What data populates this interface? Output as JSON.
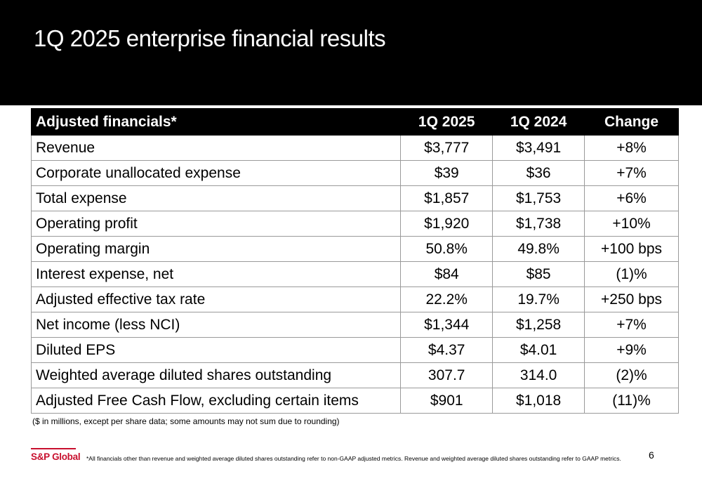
{
  "slide": {
    "title": "1Q 2025 enterprise financial results",
    "page_number": "6"
  },
  "table": {
    "headers": [
      "Adjusted financials*",
      "1Q 2025",
      "1Q 2024",
      "Change"
    ],
    "rows": [
      [
        "Revenue",
        "$3,777",
        "$3,491",
        "+8%"
      ],
      [
        "Corporate unallocated expense",
        "$39",
        "$36",
        "+7%"
      ],
      [
        "Total expense",
        "$1,857",
        "$1,753",
        "+6%"
      ],
      [
        "Operating profit",
        "$1,920",
        "$1,738",
        "+10%"
      ],
      [
        "Operating margin",
        "50.8%",
        "49.8%",
        "+100 bps"
      ],
      [
        "Interest expense, net",
        "$84",
        "$85",
        "(1)%"
      ],
      [
        "Adjusted effective tax rate",
        "22.2%",
        "19.7%",
        "+250 bps"
      ],
      [
        "Net income (less NCI)",
        "$1,344",
        "$1,258",
        "+7%"
      ],
      [
        "Diluted EPS",
        "$4.37",
        "$4.01",
        "+9%"
      ],
      [
        "Weighted average diluted shares outstanding",
        "307.7",
        "314.0",
        "(2)%"
      ],
      [
        "Adjusted Free Cash Flow, excluding certain items",
        "$901",
        "$1,018",
        "(11)%"
      ]
    ]
  },
  "note": "($ in millions, except per share data; some amounts may not sum due to rounding)",
  "footer": {
    "logo_text": "S&P Global",
    "footnote": "*All financials other than revenue and weighted average diluted shares outstanding refer to non-GAAP adjusted metrics. Revenue and weighted average diluted shares outstanding refer to GAAP metrics."
  },
  "colors": {
    "header_bg": "#000000",
    "brand_red": "#c8102e"
  }
}
